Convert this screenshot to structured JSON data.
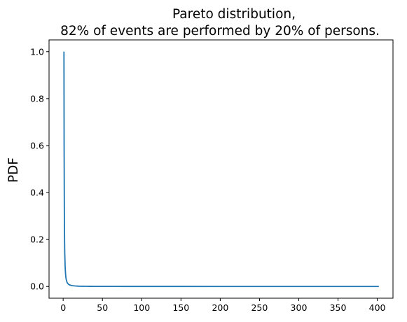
{
  "chart_data": {
    "type": "line",
    "title_line1": "Pareto distribution,",
    "title_line2": "82% of events are performed by 20% of persons.",
    "xlabel": "",
    "ylabel": "PDF",
    "xlim": [
      -18,
      420
    ],
    "ylim": [
      -0.05,
      1.05
    ],
    "x_ticks": [
      0,
      50,
      100,
      150,
      200,
      250,
      300,
      350,
      400
    ],
    "y_ticks": [
      0.0,
      0.2,
      0.4,
      0.6,
      0.8,
      1.0
    ],
    "y_tick_labels": [
      "0.0",
      "0.2",
      "0.4",
      "0.6",
      "0.8",
      "1.0"
    ],
    "grid": false,
    "series": [
      {
        "color": "#1f77b4",
        "x": [
          1,
          1.2,
          1.5,
          1.8,
          2,
          2.5,
          3,
          3.5,
          4,
          5,
          6,
          7,
          8,
          10,
          12,
          15,
          20,
          25,
          30,
          40,
          50,
          60,
          80,
          100,
          150,
          200,
          250,
          300,
          350,
          402
        ],
        "y": [
          1.0,
          0.6,
          0.32,
          0.19,
          0.145,
          0.085,
          0.055,
          0.038,
          0.028,
          0.017,
          0.012,
          0.009,
          0.007,
          0.0045,
          0.0032,
          0.0021,
          0.0012,
          0.0008,
          0.0006,
          0.0004,
          0.0003,
          0.0002,
          0.00012,
          0.0001,
          5e-05,
          3e-05,
          2e-05,
          1.5e-05,
          1e-05,
          8e-06
        ]
      }
    ]
  }
}
